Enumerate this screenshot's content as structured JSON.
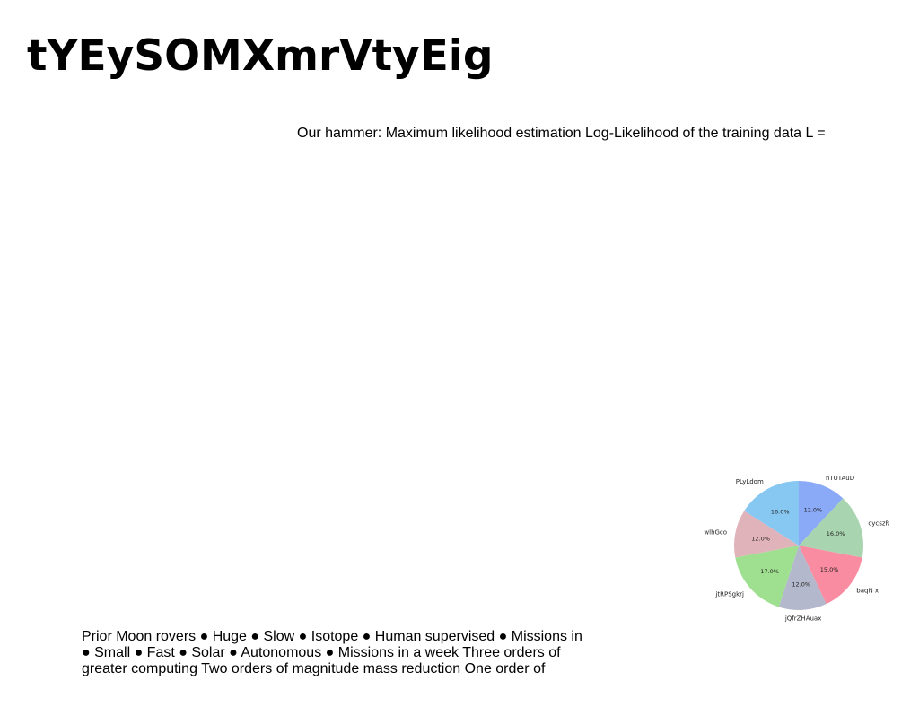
{
  "slide": {
    "title": "tYEySOMXmrVtyEig",
    "caption": "Our hammer: Maximum likelihood estimation Log-Likelihood of the training data L =",
    "body_lines": [
      "Prior Moon rovers ● Huge ● Slow ● Isotope ● Human supervised ● Missions in",
      "● Small ● Fast ● Solar ● Autonomous ● Missions in a week Three orders of",
      "greater computing Two orders of magnitude mass reduction One order of"
    ]
  },
  "chart_data": {
    "type": "pie",
    "title": "",
    "labels": [
      "nTUTAuD",
      "cycszR",
      "baqN x",
      "jQfrZHAuax",
      "jtRPSgkrj",
      "wlhGco",
      "PLyLdom"
    ],
    "values": [
      12.0,
      16.0,
      15.0,
      12.0,
      17.0,
      12.0,
      16.0
    ],
    "value_labels": [
      "12.0%",
      "16.0%",
      "15.0%",
      "12.0%",
      "17.0%",
      "12.0%",
      "16.0%"
    ],
    "colors": [
      "#8aa9f7",
      "#a8d5b0",
      "#f98ca0",
      "#b4b8cc",
      "#9ee08f",
      "#e0b3ba",
      "#86c8f2"
    ],
    "start_angle_deg": 90,
    "direction": "clockwise"
  }
}
